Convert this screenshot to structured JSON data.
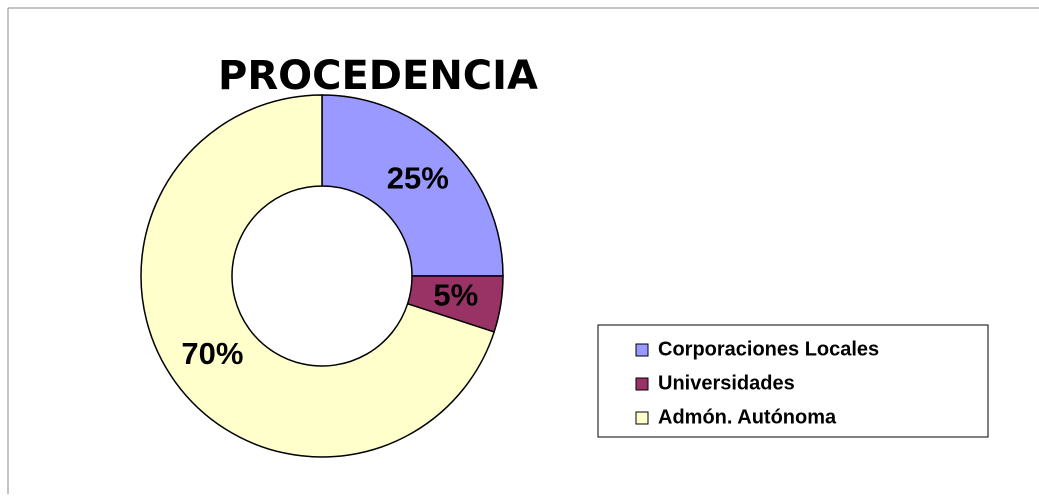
{
  "chart_data": {
    "type": "donut",
    "title": "PROCEDENCIA",
    "categories": [
      "Corporaciones Locales",
      "Universidades",
      "Admón. Autónoma"
    ],
    "values": [
      25,
      5,
      70
    ],
    "value_labels": [
      "25%",
      "5%",
      "70%"
    ],
    "colors": [
      "#9999ff",
      "#993366",
      "#ffffcc"
    ],
    "legend": "right"
  }
}
